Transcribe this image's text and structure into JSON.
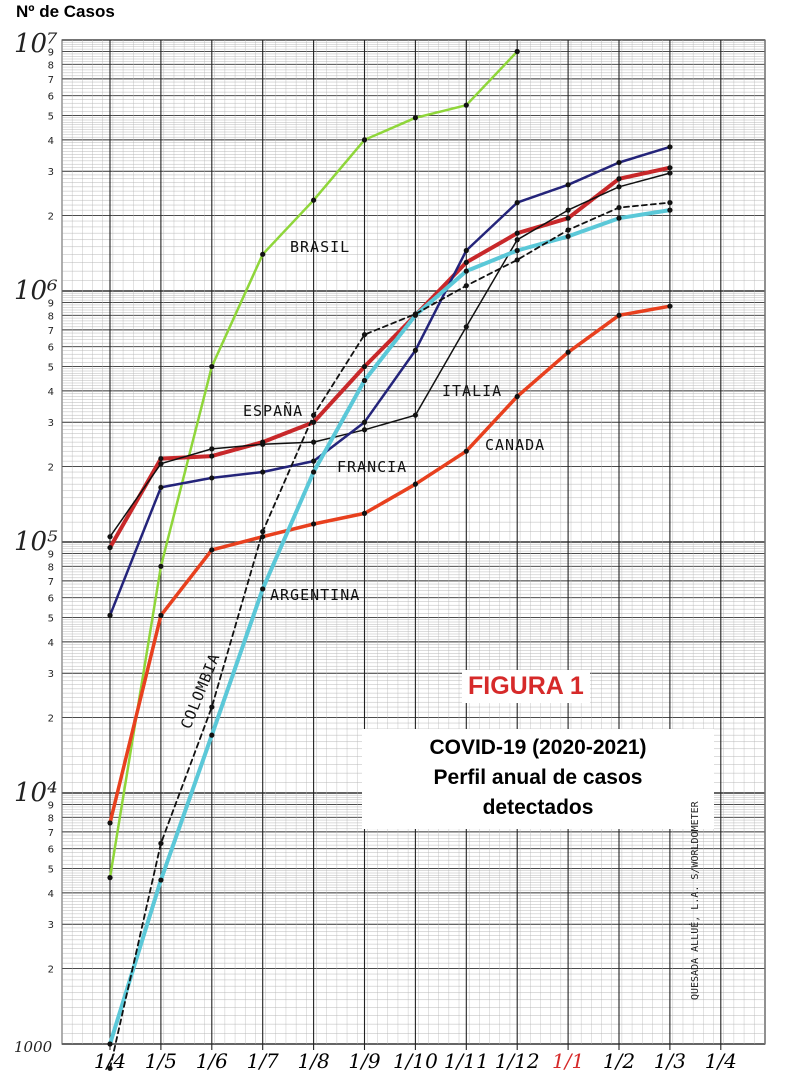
{
  "chart_data": {
    "type": "line",
    "y_scale": "log",
    "ylabel": "Nº de Casos",
    "ylim": [
      1000,
      10000000
    ],
    "y_major_ticks": [
      "1000",
      "10⁴",
      "10⁵",
      "10⁶",
      "10⁷"
    ],
    "y_minor_digits": [
      "2",
      "3",
      "4",
      "5",
      "6",
      "7",
      "8",
      "9"
    ],
    "x_ticks": [
      "1/4",
      "1/5",
      "1/6",
      "1/7",
      "1/8",
      "1/9",
      "1/10",
      "1/11",
      "1/12",
      "1/1",
      "1/2",
      "1/3",
      "1/4"
    ],
    "x_tick_colors": [
      "#000000",
      "#000000",
      "#000000",
      "#000000",
      "#000000",
      "#000000",
      "#000000",
      "#000000",
      "#000000",
      "#d62a2a",
      "#000000",
      "#000000",
      "#000000"
    ],
    "grid": true,
    "series": [
      {
        "name": "BRASIL",
        "color": "#8fd63a",
        "dashed": false,
        "width": 2.5,
        "x": [
          0,
          1,
          2,
          3,
          4,
          5,
          6,
          7,
          8
        ],
        "values": [
          4600,
          80000,
          500000,
          1400000,
          2300000,
          4000000,
          4900000,
          5500000,
          9000000
        ]
      },
      {
        "name": "ESPAÑA",
        "color": "#c8282a",
        "dashed": false,
        "width": 4,
        "x": [
          0,
          1,
          2,
          3,
          4,
          5,
          6,
          7,
          8,
          9,
          10,
          11
        ],
        "values": [
          95000,
          215000,
          220000,
          250000,
          300000,
          500000,
          800000,
          1300000,
          1700000,
          1950000,
          2800000,
          3100000
        ]
      },
      {
        "name": "ITALIA",
        "color": "#111111",
        "dashed": false,
        "width": 1.5,
        "x": [
          0,
          1,
          2,
          3,
          4,
          5,
          6,
          7,
          8,
          9,
          10,
          11
        ],
        "values": [
          105000,
          205000,
          235000,
          245000,
          250000,
          280000,
          320000,
          720000,
          1600000,
          2100000,
          2600000,
          2950000
        ]
      },
      {
        "name": "FRANCIA",
        "color": "#24247a",
        "dashed": false,
        "width": 2.5,
        "x": [
          0,
          1,
          2,
          3,
          4,
          5,
          6,
          7,
          8,
          9,
          10,
          11
        ],
        "values": [
          51000,
          165000,
          180000,
          190000,
          210000,
          300000,
          580000,
          1450000,
          2250000,
          2650000,
          3250000,
          3750000
        ]
      },
      {
        "name": "CANADA",
        "color": "#e8401e",
        "dashed": false,
        "width": 3.5,
        "x": [
          0,
          1,
          2,
          3,
          4,
          5,
          6,
          7,
          8,
          9,
          10,
          11
        ],
        "values": [
          7600,
          51000,
          93000,
          105000,
          118000,
          130000,
          170000,
          230000,
          380000,
          570000,
          800000,
          870000
        ]
      },
      {
        "name": "ARGENTINA",
        "color": "#5bc8d8",
        "dashed": false,
        "width": 4,
        "x": [
          0,
          1,
          2,
          3,
          4,
          5,
          6,
          7,
          8,
          9,
          10,
          11
        ],
        "values": [
          1000,
          4500,
          17000,
          65000,
          190000,
          440000,
          800000,
          1200000,
          1450000,
          1650000,
          1950000,
          2100000
        ]
      },
      {
        "name": "COLOMBIA",
        "color": "#111111",
        "dashed": true,
        "width": 1.8,
        "x": [
          0,
          1,
          2,
          3,
          4,
          5,
          6,
          7,
          8,
          9,
          10,
          11
        ],
        "values": [
          800,
          6300,
          22000,
          110000,
          320000,
          670000,
          810000,
          1050000,
          1330000,
          1750000,
          2150000,
          2250000
        ]
      }
    ],
    "annotations": [
      "BRASIL",
      "ESPAÑA",
      "ITALIA",
      "FRANCIA",
      "CANADA",
      "ARGENTINA",
      "COLOMBIA"
    ]
  },
  "figure_label": "FIGURA 1",
  "title_lines": [
    "COVID-19 (2020-2021)",
    "Perfil anual de casos",
    "detectados"
  ],
  "credit": "QUESADA ALLUÉ, L.A. S/WORLDOMETER"
}
